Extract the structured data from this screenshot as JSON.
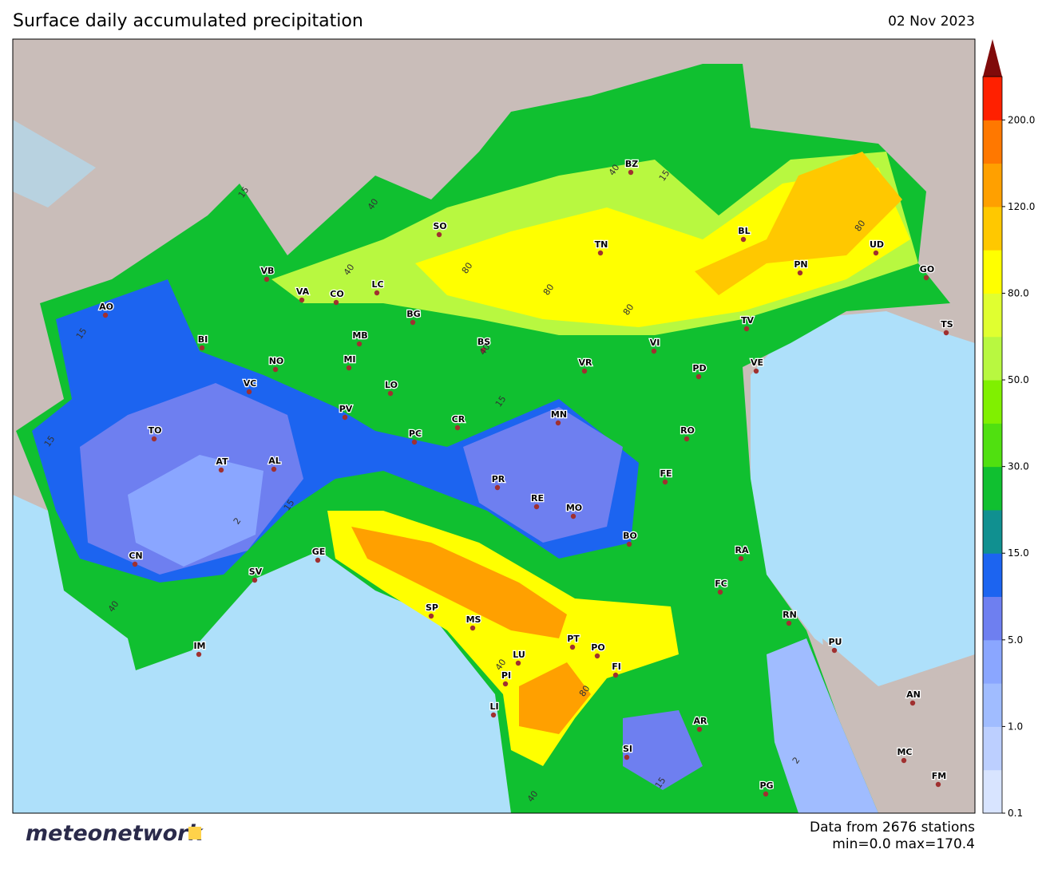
{
  "header": {
    "title": "Surface daily accumulated precipitation",
    "date": "02 Nov 2023"
  },
  "footer": {
    "logo": "meteonetwork",
    "stations": "Data from 2676 stations",
    "range": "min=0.0 max=170.4"
  },
  "colorbar": {
    "colors": [
      "#d8e4ff",
      "#bccfff",
      "#a0bcff",
      "#8aa6ff",
      "#6e7ff0",
      "#1c64f0",
      "#109090",
      "#10c030",
      "#50e010",
      "#80f000",
      "#b8f840",
      "#e0ff30",
      "#ffff00",
      "#ffc800",
      "#ffa000",
      "#ff7800",
      "#ff2000"
    ],
    "over_color": "#800a0a",
    "ticks": [
      0.1,
      {
        "value": 1,
        "label": "1.0"
      },
      {
        "value": 5,
        "label": "5.0"
      },
      {
        "value": 15,
        "label": "15.0"
      },
      {
        "value": 30,
        "label": "30.0"
      },
      {
        "value": 50,
        "label": "50.0"
      },
      {
        "value": 80,
        "label": "80.0"
      },
      {
        "value": 120,
        "label": "120.0"
      },
      {
        "value": 200,
        "label": "200.0"
      }
    ]
  },
  "cities": [
    "AO",
    "BI",
    "VB",
    "VA",
    "CO",
    "LC",
    "SO",
    "BZ",
    "TN",
    "BL",
    "UD",
    "PN",
    "GO",
    "TS",
    "TV",
    "VI",
    "VR",
    "BS",
    "BG",
    "MB",
    "MI",
    "NO",
    "VC",
    "LO",
    "PV",
    "CR",
    "PC",
    "MN",
    "PD",
    "VE",
    "RO",
    "TO",
    "AT",
    "AL",
    "FE",
    "PR",
    "RE",
    "MO",
    "BO",
    "RA",
    "FC",
    "RN",
    "PU",
    "CN",
    "SV",
    "GE",
    "IM",
    "SP",
    "MS",
    "PT",
    "PO",
    "FI",
    "LU",
    "PI",
    "LI",
    "AR",
    "SI",
    "AN",
    "MC",
    "FM",
    "PG"
  ],
  "contour_labels": [
    "15",
    "15",
    "40",
    "40",
    "80",
    "80",
    "80",
    "40",
    "15",
    "80",
    "15",
    "40",
    "15",
    "2",
    "15",
    "40",
    "80",
    "40",
    "15",
    "2",
    "40"
  ]
}
